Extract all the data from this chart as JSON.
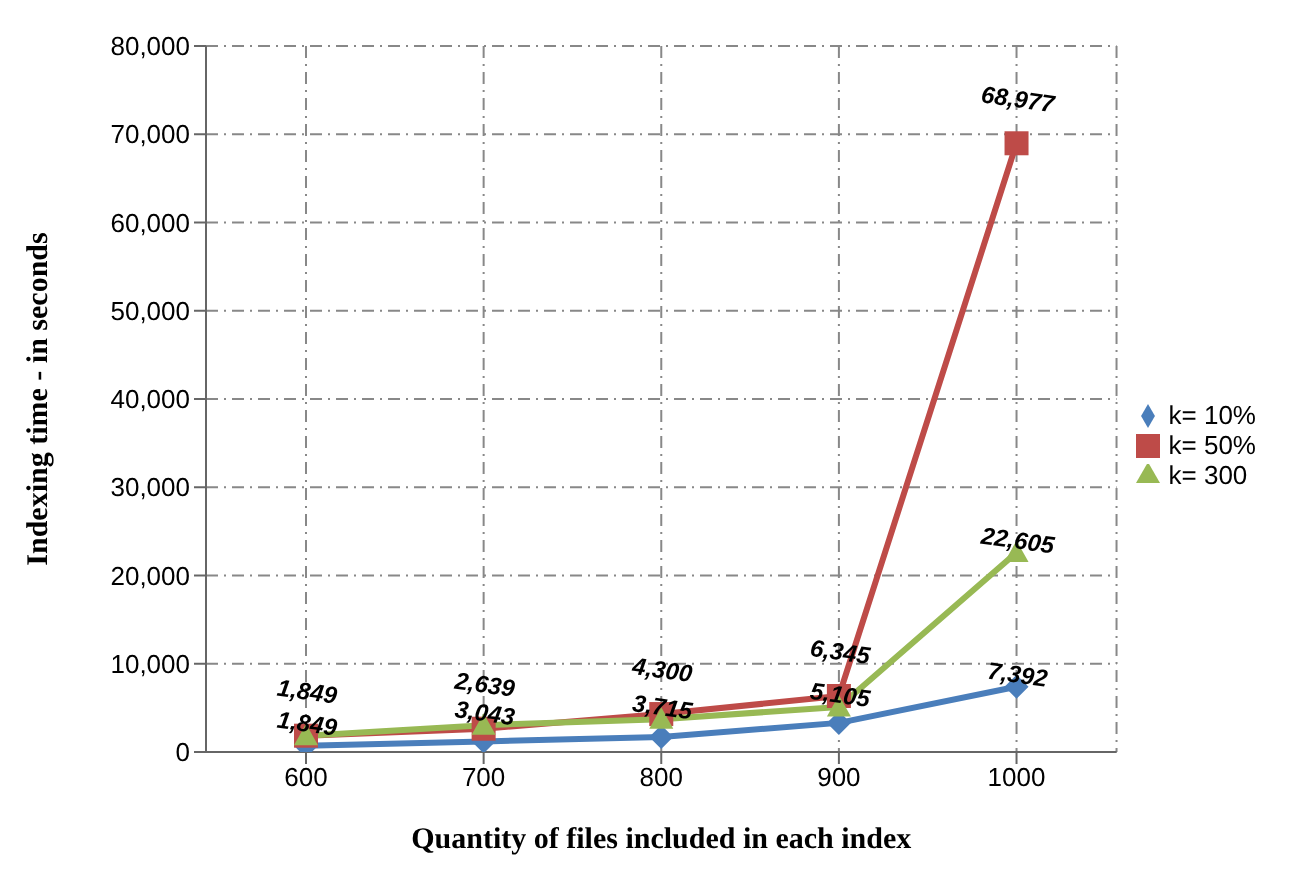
{
  "chart_data": {
    "type": "line",
    "xlabel": "Quantity of files included in each index",
    "ylabel": "Indexing time - in seconds",
    "categories": [
      "600",
      "700",
      "800",
      "900",
      "1000"
    ],
    "series": [
      {
        "name": "k= 10%",
        "color": "#4a7ebb",
        "marker": "diamond",
        "values": [
          700,
          1200,
          1700,
          3300,
          7392
        ],
        "value_labels": [
          null,
          null,
          null,
          null,
          "7,392"
        ]
      },
      {
        "name": "k= 50%",
        "color": "#be4b48",
        "marker": "square",
        "values": [
          1849,
          2639,
          4300,
          6345,
          68977
        ],
        "value_labels": [
          "1,849",
          "2,639",
          "4,300",
          "6,345",
          "68,977"
        ]
      },
      {
        "name": "k= 300",
        "color": "#98b954",
        "marker": "triangle",
        "values": [
          1849,
          3043,
          3715,
          5105,
          22605
        ],
        "value_labels": [
          "1,849",
          "3,043",
          "3,715",
          "5,105",
          "22,605"
        ]
      }
    ],
    "ylim": [
      0,
      80000
    ],
    "yticks": [
      0,
      {
        "value": 10000,
        "label": "10,000"
      },
      {
        "value": 20000,
        "label": "20,000"
      },
      {
        "value": 30000,
        "label": "30,000"
      },
      {
        "value": 40000,
        "label": "40,000"
      },
      {
        "value": 50000,
        "label": "50,000"
      },
      {
        "value": 60000,
        "label": "60,000"
      },
      {
        "value": 70000,
        "label": "70,000"
      },
      {
        "value": 80000,
        "label": "80,000"
      }
    ],
    "grid": true,
    "legend": "right"
  }
}
